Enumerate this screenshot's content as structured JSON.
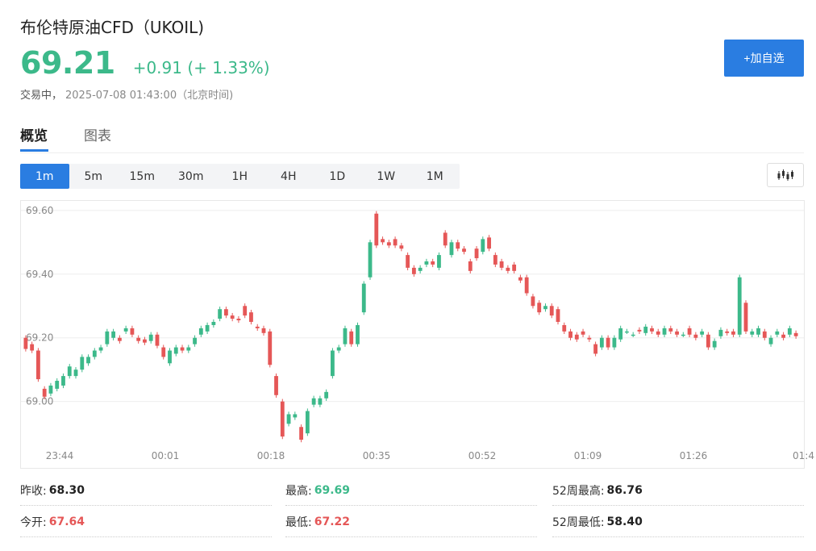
{
  "header": {
    "title": "布伦特原油CFD（UKOIL)",
    "price": "69.21",
    "change": "+0.91 (+ 1.33%)",
    "status": "交易中，",
    "timestamp": "2025-07-08 01:43:00（北京时间)",
    "add_watchlist_label": "+加自选"
  },
  "colors": {
    "up": "#3cb98a",
    "down": "#e55757",
    "accent": "#2a7de1"
  },
  "tabs": [
    {
      "label": "概览",
      "active": true
    },
    {
      "label": "图表",
      "active": false
    }
  ],
  "intervals": [
    "1m",
    "5m",
    "15m",
    "30m",
    "1H",
    "4H",
    "1D",
    "1W",
    "1M"
  ],
  "active_interval": "1m",
  "chart_toggle_icon": "candlestick-icon",
  "stats": [
    {
      "label": "昨收:",
      "value": "68.30",
      "tone": "neutral"
    },
    {
      "label": "最高:",
      "value": "69.69",
      "tone": "up"
    },
    {
      "label": "52周最高:",
      "value": "86.76",
      "tone": "neutral"
    },
    {
      "label": "今开:",
      "value": "67.64",
      "tone": "down"
    },
    {
      "label": "最低:",
      "value": "67.22",
      "tone": "down"
    },
    {
      "label": "52周最低:",
      "value": "58.40",
      "tone": "neutral"
    }
  ],
  "chart_data": {
    "type": "candlestick",
    "ylim": [
      68.87,
      69.63
    ],
    "yticks": [
      "69.60",
      "69.40",
      "69.20",
      "69.00"
    ],
    "xticks": [
      "23:44",
      "00:01",
      "00:18",
      "00:35",
      "00:52",
      "01:09",
      "01:26",
      "01:4"
    ],
    "grid": true,
    "candles": [
      [
        69.2,
        69.165
      ],
      [
        69.18,
        69.16
      ],
      [
        69.16,
        69.07
      ],
      [
        69.04,
        69.015
      ],
      [
        69.025,
        69.05
      ],
      [
        69.04,
        69.065
      ],
      [
        69.05,
        69.08
      ],
      [
        69.08,
        69.11
      ],
      [
        69.08,
        69.1
      ],
      [
        69.1,
        69.14
      ],
      [
        69.12,
        69.14
      ],
      [
        69.14,
        69.16
      ],
      [
        69.16,
        69.17
      ],
      [
        69.18,
        69.22
      ],
      [
        69.2,
        69.22
      ],
      [
        69.2,
        69.19
      ],
      [
        69.22,
        69.23
      ],
      [
        69.23,
        69.21
      ],
      [
        69.2,
        69.19
      ],
      [
        69.195,
        69.185
      ],
      [
        69.19,
        69.21
      ],
      [
        69.21,
        69.175
      ],
      [
        69.17,
        69.14
      ],
      [
        69.12,
        69.16
      ],
      [
        69.15,
        69.17
      ],
      [
        69.17,
        69.16
      ],
      [
        69.16,
        69.17
      ],
      [
        69.18,
        69.2
      ],
      [
        69.21,
        69.23
      ],
      [
        69.22,
        69.24
      ],
      [
        69.24,
        69.25
      ],
      [
        69.26,
        69.29
      ],
      [
        69.29,
        69.27
      ],
      [
        69.27,
        69.26
      ],
      [
        69.26,
        69.255
      ],
      [
        69.3,
        69.27
      ],
      [
        69.28,
        69.25
      ],
      [
        69.235,
        69.23
      ],
      [
        69.23,
        69.215
      ],
      [
        69.22,
        69.115
      ],
      [
        69.08,
        69.02
      ],
      [
        69.0,
        68.89
      ],
      [
        68.93,
        68.96
      ],
      [
        68.95,
        68.96
      ],
      [
        68.92,
        68.88
      ],
      [
        68.9,
        68.97
      ],
      [
        68.99,
        69.01
      ],
      [
        68.99,
        69.01
      ],
      [
        69.01,
        69.03
      ],
      [
        69.08,
        69.16
      ],
      [
        69.16,
        69.17
      ],
      [
        69.18,
        69.23
      ],
      [
        69.22,
        69.18
      ],
      [
        69.18,
        69.24
      ],
      [
        69.28,
        69.37
      ],
      [
        69.39,
        69.5
      ],
      [
        69.59,
        69.49
      ],
      [
        69.51,
        69.5
      ],
      [
        69.5,
        69.49
      ],
      [
        69.51,
        69.49
      ],
      [
        69.49,
        69.48
      ],
      [
        69.46,
        69.42
      ],
      [
        69.42,
        69.4
      ],
      [
        69.41,
        69.42
      ],
      [
        69.43,
        69.44
      ],
      [
        69.44,
        69.43
      ],
      [
        69.42,
        69.46
      ],
      [
        69.53,
        69.49
      ],
      [
        69.46,
        69.5
      ],
      [
        69.5,
        69.48
      ],
      [
        69.48,
        69.47
      ],
      [
        69.44,
        69.41
      ],
      [
        69.48,
        69.45
      ],
      [
        69.47,
        69.51
      ],
      [
        69.515,
        69.48
      ],
      [
        69.46,
        69.43
      ],
      [
        69.44,
        69.42
      ],
      [
        69.42,
        69.41
      ],
      [
        69.43,
        69.41
      ],
      [
        69.39,
        69.38
      ],
      [
        69.39,
        69.34
      ],
      [
        69.33,
        69.3
      ],
      [
        69.31,
        69.28
      ],
      [
        69.29,
        69.3
      ],
      [
        69.3,
        69.27
      ],
      [
        69.29,
        69.25
      ],
      [
        69.24,
        69.22
      ],
      [
        69.22,
        69.2
      ],
      [
        69.21,
        69.195
      ],
      [
        69.22,
        69.21
      ],
      [
        69.2,
        69.195
      ],
      [
        69.18,
        69.15
      ],
      [
        69.17,
        69.2
      ],
      [
        69.2,
        69.17
      ],
      [
        69.17,
        69.2
      ],
      [
        69.195,
        69.23
      ],
      [
        69.22,
        69.22
      ],
      [
        69.21,
        69.21
      ],
      [
        69.225,
        69.22
      ],
      [
        69.215,
        69.235
      ],
      [
        69.23,
        69.22
      ],
      [
        69.22,
        69.21
      ],
      [
        69.21,
        69.23
      ],
      [
        69.23,
        69.22
      ],
      [
        69.22,
        69.21
      ],
      [
        69.21,
        69.21
      ],
      [
        69.23,
        69.21
      ],
      [
        69.21,
        69.2
      ],
      [
        69.21,
        69.22
      ],
      [
        69.21,
        69.17
      ],
      [
        69.17,
        69.19
      ],
      [
        69.205,
        69.225
      ],
      [
        69.22,
        69.215
      ],
      [
        69.22,
        69.21
      ],
      [
        69.21,
        69.39
      ],
      [
        69.31,
        69.22
      ],
      [
        69.21,
        69.22
      ],
      [
        69.21,
        69.23
      ],
      [
        69.22,
        69.2
      ],
      [
        69.18,
        69.2
      ],
      [
        69.21,
        69.22
      ],
      [
        69.21,
        69.2
      ],
      [
        69.21,
        69.23
      ],
      [
        69.215,
        69.205
      ]
    ],
    "candle_format": [
      "open",
      "close"
    ]
  }
}
